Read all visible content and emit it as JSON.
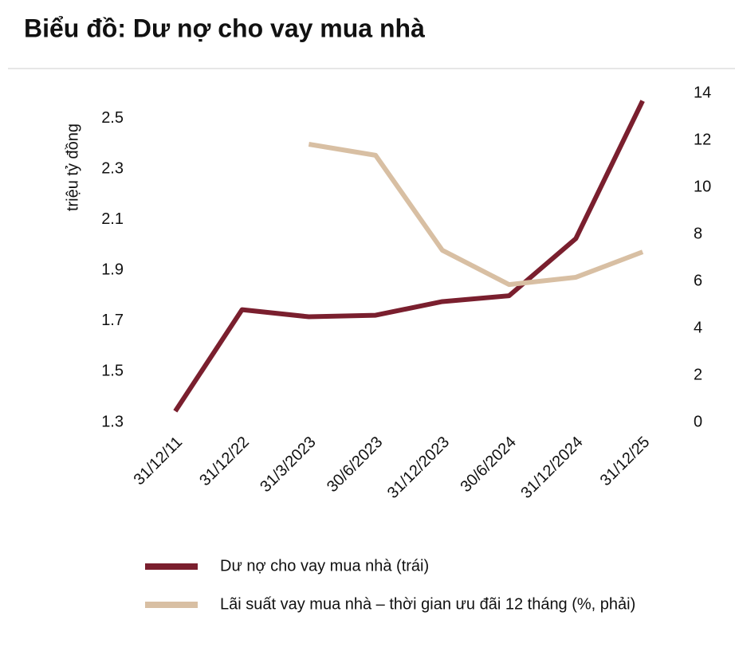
{
  "chart_data": {
    "type": "line",
    "title": "Biểu đồ: Dư nợ cho vay mua nhà",
    "y_label": "triệu tỷ đồng",
    "categories": [
      "31/12/11",
      "31/12/22",
      "31/3/2023",
      "30/6/2023",
      "31/12/2023",
      "30/6/2024",
      "31/12/2024",
      "31/12/25"
    ],
    "series": [
      {
        "name": "Dư nợ cho vay mua nhà (trái)",
        "color": "#7a1f2e",
        "values": [
          1.344,
          1.745,
          1.717,
          1.723,
          1.777,
          1.8,
          2.026,
          2.57
        ]
      },
      {
        "name": "Lãi suất vay mua nhà – thời gian ưu đãi 12 tháng (%, phải)",
        "color": "#d8bfa3",
        "axis": "y2",
        "values": [
          null,
          null,
          11.83,
          11.36,
          7.32,
          5.86,
          6.17,
          7.25
        ]
      }
    ],
    "ylim": [
      1.3,
      2.6
    ],
    "yticks": [
      1.3,
      1.5,
      1.7,
      1.9,
      2.1,
      2.3,
      2.5
    ],
    "y2lim": [
      0,
      14
    ],
    "y2ticks": [
      0,
      2,
      4,
      6,
      8,
      10,
      12,
      14
    ]
  }
}
